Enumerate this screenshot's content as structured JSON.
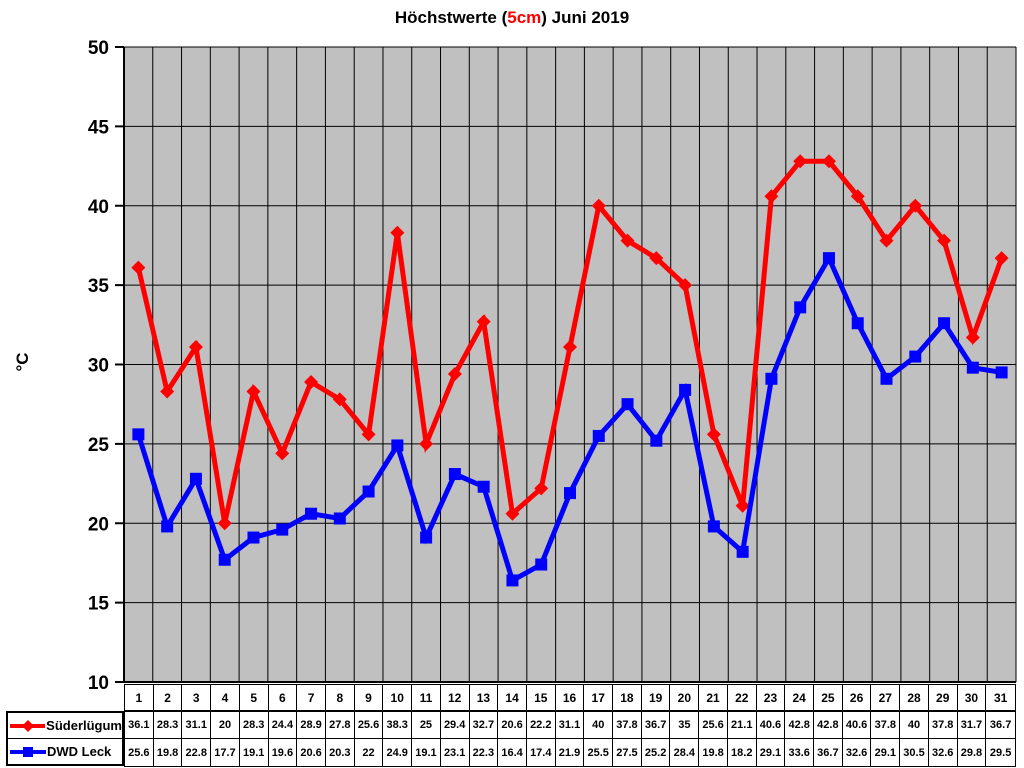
{
  "title": {
    "prefix": "Höchstwerte (",
    "highlight": "5cm",
    "suffix": ") Juni 2019",
    "highlight_color": "#ff0000"
  },
  "y_axis_label": "°C",
  "chart_data": {
    "type": "line",
    "title": "Höchstwerte (5cm) Juni 2019",
    "xlabel": "",
    "ylabel": "°C",
    "ylim": [
      10,
      50
    ],
    "yticks": [
      10,
      15,
      20,
      25,
      30,
      35,
      40,
      45,
      50
    ],
    "grid": true,
    "plot_background": "#c0c0c0",
    "grid_color": "#000000",
    "legend_position": "table-left-bottom",
    "categories": [
      1,
      2,
      3,
      4,
      5,
      6,
      7,
      8,
      9,
      10,
      11,
      12,
      13,
      14,
      15,
      16,
      17,
      18,
      19,
      20,
      21,
      22,
      23,
      24,
      25,
      26,
      27,
      28,
      29,
      30,
      31
    ],
    "series": [
      {
        "name": "Süderlügum",
        "color": "#ff0000",
        "marker": "diamond",
        "values": [
          36.1,
          28.3,
          31.1,
          20,
          28.3,
          24.4,
          28.9,
          27.8,
          25.6,
          38.3,
          25,
          29.4,
          32.7,
          20.6,
          22.2,
          31.1,
          40,
          37.8,
          36.7,
          35,
          25.6,
          21.1,
          40.6,
          42.8,
          42.8,
          40.6,
          37.8,
          40,
          37.8,
          31.7,
          36.7
        ]
      },
      {
        "name": "DWD Leck",
        "color": "#0000ff",
        "marker": "square",
        "values": [
          25.6,
          19.8,
          22.8,
          17.7,
          19.1,
          19.6,
          20.6,
          20.3,
          22,
          24.9,
          19.1,
          23.1,
          22.3,
          16.4,
          17.4,
          21.9,
          25.5,
          27.5,
          25.2,
          28.4,
          19.8,
          18.2,
          29.1,
          33.6,
          36.7,
          32.6,
          29.1,
          30.5,
          32.6,
          29.8,
          29.5
        ]
      }
    ]
  }
}
